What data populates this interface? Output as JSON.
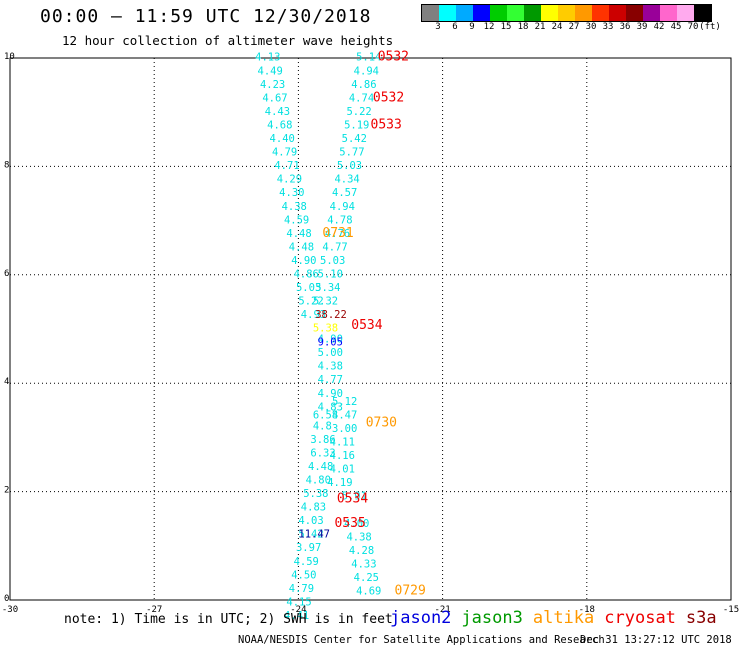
{
  "header": {
    "title": "00:00 — 11:59 UTC 12/30/2018",
    "subtitle": "12 hour collection of altimeter wave heights"
  },
  "legend": {
    "colors": [
      "#808080",
      "#00ffff",
      "#00aaff",
      "#0000ff",
      "#00cc00",
      "#33ff33",
      "#009900",
      "#ffff00",
      "#ffcc00",
      "#ff9900",
      "#ff3300",
      "#cc0000",
      "#880000",
      "#990099",
      "#ff66cc",
      "#ffaaee",
      "#000000"
    ],
    "ticks": [
      "3",
      "6",
      "9",
      "12",
      "15",
      "18",
      "21",
      "24",
      "27",
      "30",
      "33",
      "36",
      "39",
      "42",
      "45",
      "70",
      "(ft)"
    ]
  },
  "chart_data": {
    "type": "scatter",
    "xlim": [
      -30,
      -15
    ],
    "ylim": [
      0,
      10
    ],
    "x_ticks": [
      "-30",
      "-27",
      "-24",
      "-21",
      "-18",
      "-15"
    ],
    "y_ticks": [
      "0",
      "2",
      "4",
      "6",
      "8",
      "10"
    ],
    "grid": true,
    "swh_points": [
      {
        "x": -24.9,
        "y": 9.95,
        "v": "4.13",
        "c": "#00e0e0"
      },
      {
        "x": -24.85,
        "y": 9.7,
        "v": "4.49",
        "c": "#00e0e0"
      },
      {
        "x": -24.8,
        "y": 9.45,
        "v": "4.23",
        "c": "#00e0e0"
      },
      {
        "x": -24.75,
        "y": 9.2,
        "v": "4.67",
        "c": "#00e0e0"
      },
      {
        "x": -24.7,
        "y": 8.95,
        "v": "4.43",
        "c": "#00e0e0"
      },
      {
        "x": -24.65,
        "y": 8.7,
        "v": "4.68",
        "c": "#00e0e0"
      },
      {
        "x": -24.6,
        "y": 8.45,
        "v": "4.40",
        "c": "#00e0e0"
      },
      {
        "x": -24.55,
        "y": 8.2,
        "v": "4.79",
        "c": "#00e0e0"
      },
      {
        "x": -24.5,
        "y": 7.95,
        "v": "4.71",
        "c": "#00e0e0"
      },
      {
        "x": -24.45,
        "y": 7.7,
        "v": "4.29",
        "c": "#00e0e0"
      },
      {
        "x": -24.4,
        "y": 7.45,
        "v": "4.30",
        "c": "#00e0e0"
      },
      {
        "x": -24.35,
        "y": 7.2,
        "v": "4.38",
        "c": "#00e0e0"
      },
      {
        "x": -24.3,
        "y": 6.95,
        "v": "4.59",
        "c": "#00e0e0"
      },
      {
        "x": -24.25,
        "y": 6.7,
        "v": "4.48",
        "c": "#00e0e0"
      },
      {
        "x": -24.2,
        "y": 6.45,
        "v": "4.48",
        "c": "#00e0e0"
      },
      {
        "x": -24.15,
        "y": 6.2,
        "v": "4.90",
        "c": "#00e0e0"
      },
      {
        "x": -24.1,
        "y": 5.95,
        "v": "4.86",
        "c": "#00e0e0"
      },
      {
        "x": -24.05,
        "y": 5.7,
        "v": "5.03",
        "c": "#00e0e0"
      },
      {
        "x": -24.0,
        "y": 5.45,
        "v": "5.22",
        "c": "#00e0e0"
      },
      {
        "x": -23.95,
        "y": 5.2,
        "v": "4.93",
        "c": "#00e0e0"
      },
      {
        "x": -23.6,
        "y": 4.75,
        "v": "4.90",
        "c": "#00e0e0"
      },
      {
        "x": -23.6,
        "y": 4.5,
        "v": "5.00",
        "c": "#00e0e0"
      },
      {
        "x": -23.6,
        "y": 4.25,
        "v": "4.38",
        "c": "#00e0e0"
      },
      {
        "x": -23.6,
        "y": 4.0,
        "v": "4.77",
        "c": "#00e0e0"
      },
      {
        "x": -23.6,
        "y": 3.75,
        "v": "4.90",
        "c": "#00e0e0"
      },
      {
        "x": -23.6,
        "y": 3.5,
        "v": "4.83",
        "c": "#00e0e0"
      },
      {
        "x": -23.7,
        "y": 3.35,
        "v": "6.58",
        "c": "#00e0e0"
      },
      {
        "x": -23.7,
        "y": 3.15,
        "v": "4.8",
        "c": "#00e0e0"
      },
      {
        "x": -23.75,
        "y": 2.9,
        "v": "3.86",
        "c": "#00e0e0"
      },
      {
        "x": -23.75,
        "y": 2.65,
        "v": "6.33",
        "c": "#00e0e0"
      },
      {
        "x": -23.8,
        "y": 2.4,
        "v": "4.48",
        "c": "#00e0e0"
      },
      {
        "x": -23.85,
        "y": 2.15,
        "v": "4.80",
        "c": "#00e0e0"
      },
      {
        "x": -23.9,
        "y": 1.9,
        "v": "5.38",
        "c": "#00e0e0"
      },
      {
        "x": -23.95,
        "y": 1.65,
        "v": "4.83",
        "c": "#00e0e0"
      },
      {
        "x": -24.0,
        "y": 1.4,
        "v": "4.03",
        "c": "#00e0e0"
      },
      {
        "x": -24.0,
        "y": 1.15,
        "v": "5.42",
        "c": "#00e0e0"
      },
      {
        "x": -24.05,
        "y": 0.9,
        "v": "3.97",
        "c": "#00e0e0"
      },
      {
        "x": -24.1,
        "y": 0.65,
        "v": "4.59",
        "c": "#00e0e0"
      },
      {
        "x": -24.15,
        "y": 0.4,
        "v": "4.50",
        "c": "#00e0e0"
      },
      {
        "x": -24.2,
        "y": 0.15,
        "v": "4.79",
        "c": "#00e0e0"
      },
      {
        "x": -24.25,
        "y": -0.1,
        "v": "4.15",
        "c": "#00e0e0"
      },
      {
        "x": -24.3,
        "y": -0.35,
        "v": "4.41",
        "c": "#00e0e0"
      },
      {
        "x": -22.8,
        "y": 9.95,
        "v": "5.14",
        "c": "#00e0e0"
      },
      {
        "x": -22.85,
        "y": 9.7,
        "v": "4.94",
        "c": "#00e0e0"
      },
      {
        "x": -22.9,
        "y": 9.45,
        "v": "4.86",
        "c": "#00e0e0"
      },
      {
        "x": -22.95,
        "y": 9.2,
        "v": "4.74",
        "c": "#00e0e0"
      },
      {
        "x": -23.0,
        "y": 8.95,
        "v": "5.22",
        "c": "#00e0e0"
      },
      {
        "x": -23.05,
        "y": 8.7,
        "v": "5.19",
        "c": "#00e0e0"
      },
      {
        "x": -23.1,
        "y": 8.45,
        "v": "5.42",
        "c": "#00e0e0"
      },
      {
        "x": -23.15,
        "y": 8.2,
        "v": "5.77",
        "c": "#00e0e0"
      },
      {
        "x": -23.2,
        "y": 7.95,
        "v": "5.03",
        "c": "#00e0e0"
      },
      {
        "x": -23.25,
        "y": 7.7,
        "v": "4.34",
        "c": "#00e0e0"
      },
      {
        "x": -23.3,
        "y": 7.45,
        "v": "4.57",
        "c": "#00e0e0"
      },
      {
        "x": -23.35,
        "y": 7.2,
        "v": "4.94",
        "c": "#00e0e0"
      },
      {
        "x": -23.4,
        "y": 6.95,
        "v": "4.78",
        "c": "#00e0e0"
      },
      {
        "x": -23.45,
        "y": 6.7,
        "v": "4.76",
        "c": "#00e0e0"
      },
      {
        "x": -23.5,
        "y": 6.45,
        "v": "4.77",
        "c": "#00e0e0"
      },
      {
        "x": -23.55,
        "y": 6.2,
        "v": "5.03",
        "c": "#00e0e0"
      },
      {
        "x": -23.6,
        "y": 5.95,
        "v": "5.10",
        "c": "#00e0e0"
      },
      {
        "x": -23.65,
        "y": 5.7,
        "v": "5.34",
        "c": "#00e0e0"
      },
      {
        "x": -23.7,
        "y": 5.45,
        "v": "5.32",
        "c": "#00e0e0"
      },
      {
        "x": -23.65,
        "y": 5.2,
        "v": "38.22",
        "c": "#990000"
      },
      {
        "x": -23.7,
        "y": 4.95,
        "v": "5.38",
        "c": "#ffff00"
      },
      {
        "x": -23.6,
        "y": 4.7,
        "v": "9.05",
        "c": "#0000ff"
      },
      {
        "x": -23.3,
        "y": 3.6,
        "v": "5.12",
        "c": "#00e0e0"
      },
      {
        "x": -23.3,
        "y": 3.35,
        "v": "4.47",
        "c": "#00e0e0"
      },
      {
        "x": -23.3,
        "y": 3.1,
        "v": "3.00",
        "c": "#00e0e0"
      },
      {
        "x": -23.35,
        "y": 2.85,
        "v": "4.11",
        "c": "#00e0e0"
      },
      {
        "x": -23.35,
        "y": 2.6,
        "v": "4.16",
        "c": "#00e0e0"
      },
      {
        "x": -23.35,
        "y": 2.35,
        "v": "4.01",
        "c": "#00e0e0"
      },
      {
        "x": -23.4,
        "y": 2.1,
        "v": "4.19",
        "c": "#00e0e0"
      },
      {
        "x": -23.1,
        "y": 1.85,
        "v": "5.91",
        "c": "#00e0e0"
      },
      {
        "x": -23.05,
        "y": 1.35,
        "v": "4.00",
        "c": "#00e0e0"
      },
      {
        "x": -23.0,
        "y": 1.1,
        "v": "4.38",
        "c": "#00e0e0"
      },
      {
        "x": -22.95,
        "y": 0.85,
        "v": "4.28",
        "c": "#00e0e0"
      },
      {
        "x": -22.9,
        "y": 0.6,
        "v": "4.33",
        "c": "#00e0e0"
      },
      {
        "x": -22.85,
        "y": 0.35,
        "v": "4.25",
        "c": "#00e0e0"
      },
      {
        "x": -22.8,
        "y": 0.1,
        "v": "4.69",
        "c": "#00e0e0"
      },
      {
        "x": -24.0,
        "y": 1.15,
        "v": "11.47",
        "c": "#000099"
      }
    ],
    "time_labels": [
      {
        "x": -22.35,
        "y": 9.95,
        "v": "0532",
        "c": "#ee0000"
      },
      {
        "x": -22.45,
        "y": 9.2,
        "v": "0532",
        "c": "#ee0000"
      },
      {
        "x": -22.5,
        "y": 8.7,
        "v": "0533",
        "c": "#ee0000"
      },
      {
        "x": -23.5,
        "y": 6.7,
        "v": "0731",
        "c": "#ff9900"
      },
      {
        "x": -22.9,
        "y": 5.0,
        "v": "0534",
        "c": "#ee0000"
      },
      {
        "x": -22.6,
        "y": 3.2,
        "v": "0730",
        "c": "#ff9900"
      },
      {
        "x": -23.2,
        "y": 1.8,
        "v": "0534",
        "c": "#ee0000"
      },
      {
        "x": -23.25,
        "y": 1.35,
        "v": "0535",
        "c": "#ee0000"
      },
      {
        "x": -22.0,
        "y": 0.1,
        "v": "0729",
        "c": "#ff9900"
      }
    ]
  },
  "footer": {
    "note": "note: 1) Time is in UTC; 2) SWH is in feet",
    "satellites": [
      {
        "name": "jason2",
        "color": "#0000dd"
      },
      {
        "name": "jason3",
        "color": "#009900"
      },
      {
        "name": "altika",
        "color": "#ff9900"
      },
      {
        "name": "cryosat",
        "color": "#ee0000"
      },
      {
        "name": "s3a",
        "color": "#880000"
      }
    ],
    "credit": "NOAA/NESDIS Center for Satellite Applications and Research",
    "timestamp": "Dec 31 13:27:12 UTC 2018"
  }
}
